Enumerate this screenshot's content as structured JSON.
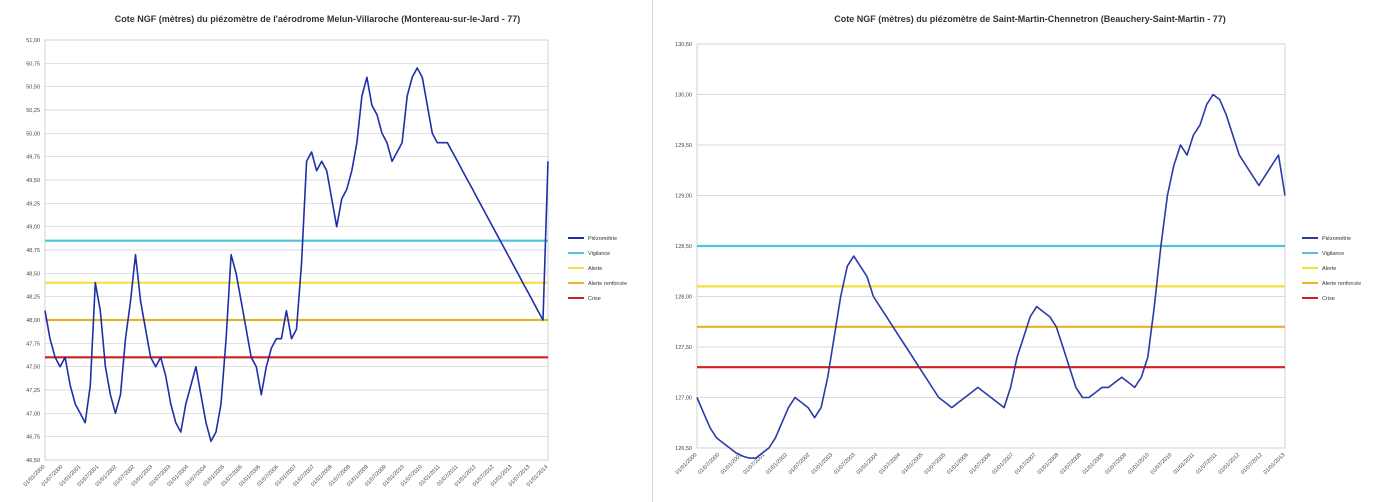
{
  "chart_data": [
    {
      "type": "line",
      "title": "Cote NGF (mètres) du piézomètre de l'aérodrome Melun-Villaroche (Montereau-sur-le-Jard - 77)",
      "ylim": [
        46.5,
        51.0
      ],
      "yticks": [
        "51,00",
        "50,75",
        "50,50",
        "50,25",
        "50,00",
        "49,75",
        "49,50",
        "49,25",
        "49,00",
        "48,75",
        "48,50",
        "48,25",
        "48,00",
        "47,75",
        "47,50",
        "47,25",
        "47,00",
        "46,75",
        "46,50"
      ],
      "xticks": [
        "01/01/2000",
        "01/07/2000",
        "01/01/2001",
        "01/07/2001",
        "01/01/2002",
        "01/07/2002",
        "01/01/2003",
        "01/07/2003",
        "01/01/2004",
        "01/07/2004",
        "01/01/2005",
        "01/07/2005",
        "01/01/2006",
        "01/07/2006",
        "01/01/2007",
        "01/07/2007",
        "01/01/2008",
        "01/07/2008",
        "01/01/2009",
        "01/07/2009",
        "01/01/2010",
        "01/07/2010",
        "01/01/2011",
        "01/07/2011",
        "01/01/2012",
        "01/07/2012",
        "01/01/2013",
        "01/07/2013",
        "01/01/2014"
      ],
      "grid": true,
      "legend_position": "right",
      "series": [
        {
          "name": "Piézométrie",
          "color": "#1f2fa8",
          "x": [
            0,
            1,
            2,
            3,
            4,
            5,
            6,
            7,
            8,
            9,
            10,
            11,
            12,
            13,
            14,
            15,
            16,
            17,
            18,
            19,
            20,
            21,
            22,
            23,
            24,
            25,
            26,
            27,
            28,
            29,
            30,
            31,
            32,
            33,
            34,
            35,
            36,
            37,
            38,
            39,
            40,
            41,
            42,
            43,
            44,
            45,
            46,
            47,
            48,
            49,
            50,
            51,
            52,
            53,
            54,
            55,
            56,
            57,
            58,
            59,
            60,
            61,
            62,
            63,
            64,
            65,
            66,
            67,
            68,
            69,
            70,
            71,
            72,
            73,
            74,
            75,
            76,
            77,
            78,
            79,
            80,
            81,
            82,
            83,
            84,
            85,
            86,
            87,
            88,
            89,
            90,
            91,
            92,
            93,
            94,
            95,
            96,
            97,
            98,
            99,
            100
          ],
          "y": [
            48.1,
            47.8,
            47.6,
            47.5,
            47.6,
            47.3,
            47.1,
            47.0,
            46.9,
            47.3,
            48.4,
            48.1,
            47.5,
            47.2,
            47.0,
            47.2,
            47.8,
            48.2,
            48.7,
            48.2,
            47.9,
            47.6,
            47.5,
            47.6,
            47.4,
            47.1,
            46.9,
            46.8,
            47.1,
            47.3,
            47.5,
            47.2,
            46.9,
            46.7,
            46.8,
            47.1,
            47.8,
            48.7,
            48.5,
            48.2,
            47.9,
            47.6,
            47.5,
            47.2,
            47.5,
            47.7,
            47.8,
            47.8,
            48.1,
            47.8,
            47.9,
            48.6,
            49.7,
            49.8,
            49.6,
            49.7,
            49.6,
            49.3,
            49.0,
            49.3,
            49.4,
            49.6,
            49.9,
            50.4,
            50.6,
            50.3,
            50.2,
            50.0,
            49.9,
            49.7,
            49.8,
            49.9,
            50.4,
            50.6,
            50.7,
            50.6,
            50.3,
            50.0,
            49.9,
            49.9,
            49.9,
            49.8,
            49.7,
            49.6,
            49.5,
            49.4,
            49.3,
            49.2,
            49.1,
            49.0,
            48.9,
            48.8,
            48.7,
            48.6,
            48.5,
            48.4,
            48.3,
            48.2,
            48.1,
            48.0,
            49.7
          ]
        },
        {
          "name": "Vigilance",
          "color": "#4fc3d9",
          "y": 48.85
        },
        {
          "name": "Alerte",
          "color": "#f2e23a",
          "y": 48.4
        },
        {
          "name": "Alerte renforcée",
          "color": "#e8b224",
          "y": 48.0
        },
        {
          "name": "Crise",
          "color": "#d01f1f",
          "y": 47.6
        }
      ]
    },
    {
      "type": "line",
      "title": "Cote NGF (mètres) du piézomètre de Saint-Martin-Chennetron (Beauchery-Saint-Martin - 77)",
      "ylim": [
        126.5,
        130.5
      ],
      "yticks": [
        "130,50",
        "130,00",
        "129,50",
        "129,00",
        "128,50",
        "128,00",
        "127,50",
        "127,00",
        "126,50"
      ],
      "xticks": [
        "01/01/2000",
        "01/07/2000",
        "01/01/2001",
        "01/07/2001",
        "01/01/2002",
        "01/07/2002",
        "01/01/2003",
        "01/07/2003",
        "01/01/2004",
        "01/07/2004",
        "01/01/2005",
        "01/07/2005",
        "01/01/2006",
        "01/07/2006",
        "01/01/2007",
        "01/07/2007",
        "01/01/2008",
        "01/07/2008",
        "01/01/2009",
        "01/07/2009",
        "01/01/2010",
        "01/07/2010",
        "01/01/2011",
        "01/07/2011",
        "01/01/2012",
        "01/07/2012",
        "01/01/2013"
      ],
      "grid": true,
      "legend_position": "right",
      "series": [
        {
          "name": "Piézométrie",
          "color": "#2b3aa8",
          "x": [
            0,
            1,
            2,
            3,
            4,
            5,
            6,
            7,
            8,
            9,
            10,
            11,
            12,
            13,
            14,
            15,
            16,
            17,
            18,
            19,
            20,
            21,
            22,
            23,
            24,
            25,
            26,
            27,
            28,
            29,
            30,
            31,
            32,
            33,
            34,
            35,
            36,
            37,
            38,
            39,
            40,
            41,
            42,
            43,
            44,
            45,
            46,
            47,
            48,
            49,
            50,
            51,
            52,
            53,
            54,
            55,
            56,
            57,
            58,
            59,
            60,
            61,
            62,
            63,
            64,
            65,
            66,
            67,
            68,
            69,
            70,
            71,
            72,
            73,
            74,
            75,
            76,
            77,
            78,
            79,
            80,
            81,
            82,
            83,
            84,
            85,
            86,
            87,
            88,
            89,
            90
          ],
          "y": [
            127.0,
            126.85,
            126.7,
            126.6,
            126.55,
            126.5,
            126.45,
            126.42,
            126.4,
            126.4,
            126.45,
            126.5,
            126.6,
            126.75,
            126.9,
            127.0,
            126.95,
            126.9,
            126.8,
            126.9,
            127.2,
            127.6,
            128.0,
            128.3,
            128.4,
            128.3,
            128.2,
            128.0,
            127.9,
            127.8,
            127.7,
            127.6,
            127.5,
            127.4,
            127.3,
            127.2,
            127.1,
            127.0,
            126.95,
            126.9,
            126.95,
            127.0,
            127.05,
            127.1,
            127.05,
            127.0,
            126.95,
            126.9,
            127.1,
            127.4,
            127.6,
            127.8,
            127.9,
            127.85,
            127.8,
            127.7,
            127.5,
            127.3,
            127.1,
            127.0,
            127.0,
            127.05,
            127.1,
            127.1,
            127.15,
            127.2,
            127.15,
            127.1,
            127.2,
            127.4,
            127.9,
            128.5,
            129.0,
            129.3,
            129.5,
            129.4,
            129.6,
            129.7,
            129.9,
            130.0,
            129.95,
            129.8,
            129.6,
            129.4,
            129.3,
            129.2,
            129.1,
            129.2,
            129.3,
            129.4,
            129.0
          ]
        },
        {
          "name": "Vigilance",
          "color": "#4fc3d9",
          "y": 128.5
        },
        {
          "name": "Alerte",
          "color": "#f2e23a",
          "y": 128.1
        },
        {
          "name": "Alerte renforcée",
          "color": "#e8b224",
          "y": 127.7
        },
        {
          "name": "Crise",
          "color": "#d01f1f",
          "y": 127.3
        }
      ]
    }
  ]
}
